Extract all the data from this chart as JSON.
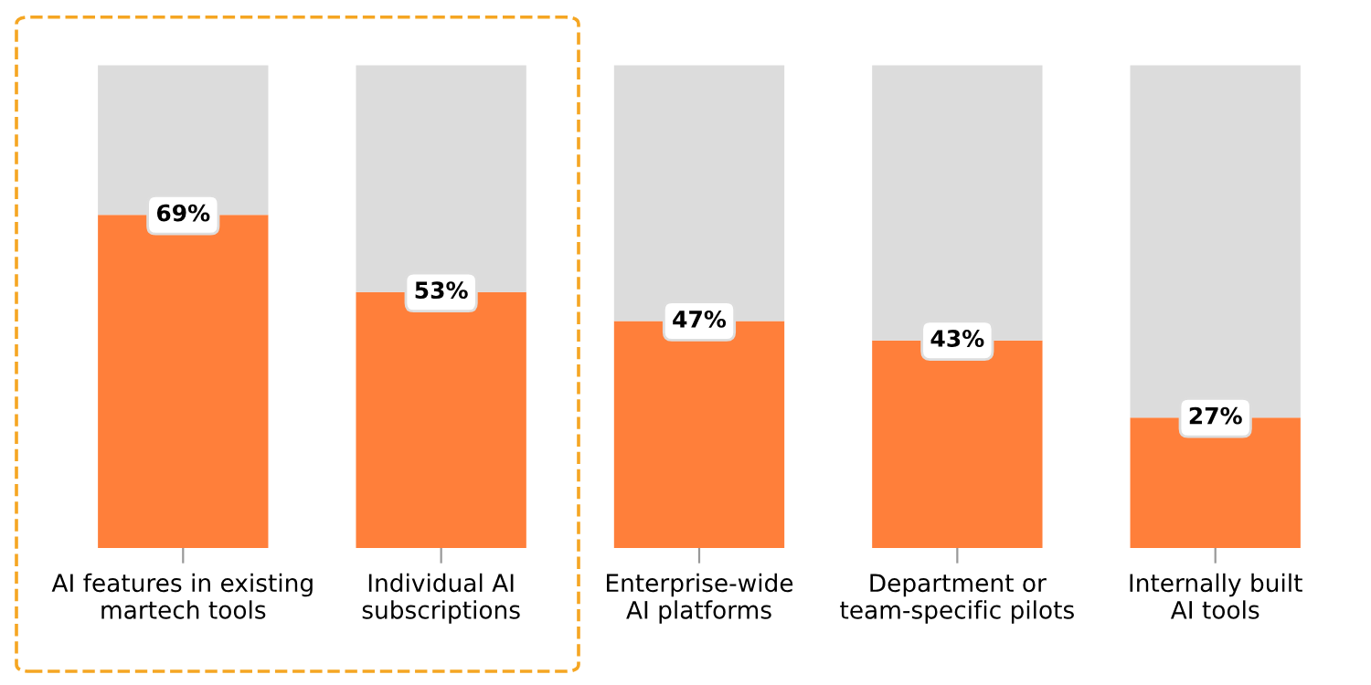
{
  "chart_data": {
    "type": "bar",
    "stacked": true,
    "categories": [
      "AI features in existing\nmartech tools",
      "Individual AI\nsubscriptions",
      "Enterprise-wide\nAI platforms",
      "Department or\nteam-specific pilots",
      "Internally built\nAI tools"
    ],
    "series": [
      {
        "color": "#ff7f3a",
        "values": [
          69,
          53,
          47,
          43,
          27
        ],
        "value_labels": [
          "69%",
          "53%",
          "47%",
          "43%",
          "27%"
        ]
      },
      {
        "color": "#dcdcdc",
        "values": [
          31,
          47,
          53,
          57,
          73
        ]
      }
    ],
    "grid": false,
    "legend": false,
    "tick_labels": "x"
  }
}
